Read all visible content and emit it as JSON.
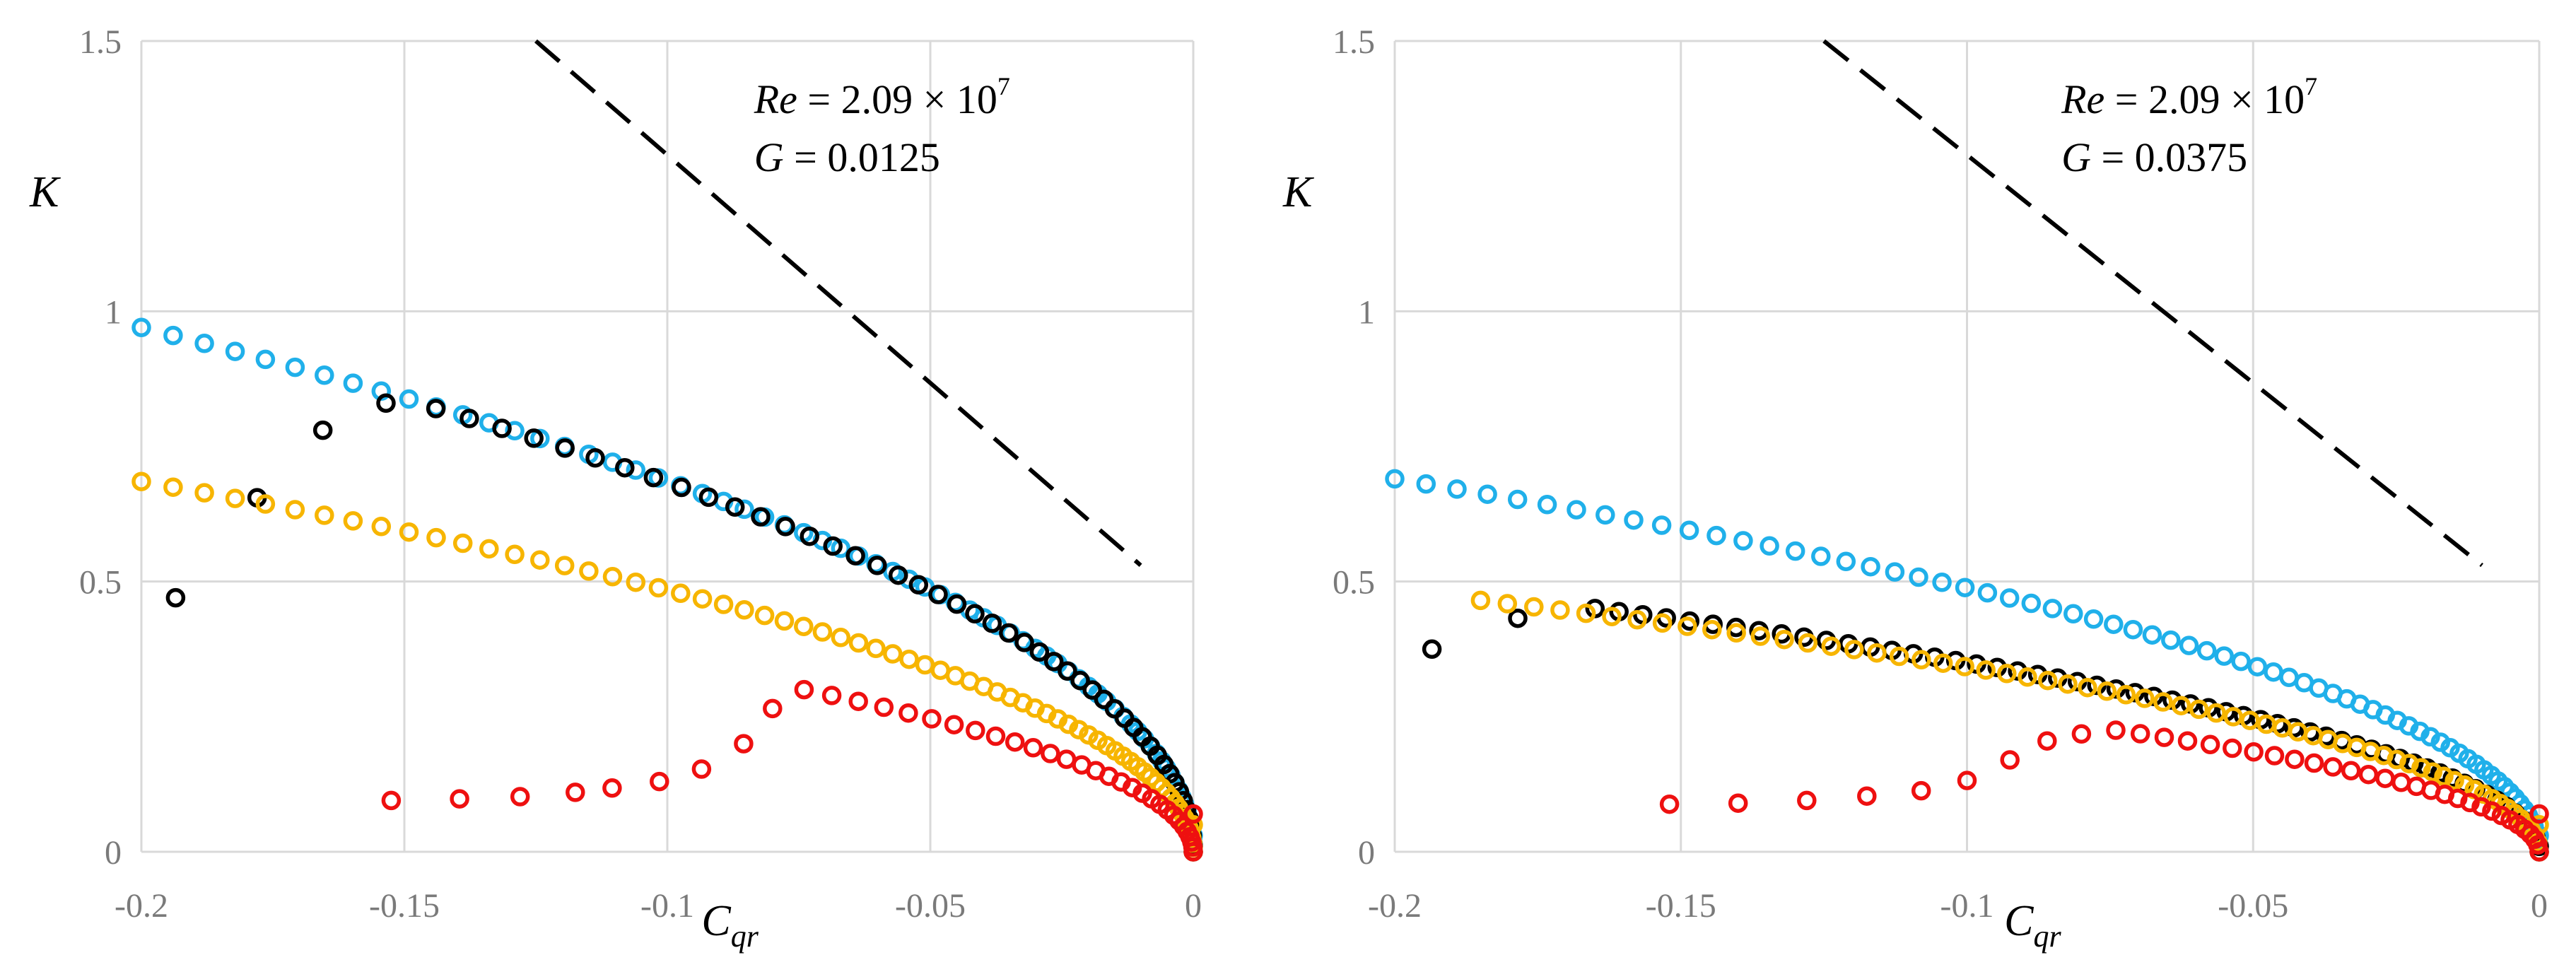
{
  "colors": {
    "grid": "#d9d9d9",
    "tick_text": "#7a7a7a",
    "blue": "#20b0ea",
    "black": "#000000",
    "orange": "#f7b500",
    "red": "#ee1010",
    "dash": "#000000"
  },
  "chart_data": [
    {
      "type": "scatter",
      "title": "",
      "xlabel_main": "C",
      "xlabel_sub": "qr",
      "ylabel": "K",
      "xlim": [
        -0.2,
        0
      ],
      "ylim": [
        0,
        1.5
      ],
      "xticks": [
        -0.2,
        -0.15,
        -0.1,
        -0.05,
        0
      ],
      "xtick_labels": [
        "-0.2",
        "-0.15",
        "-0.1",
        "-0.05",
        "0"
      ],
      "yticks": [
        0,
        0.5,
        1,
        1.5
      ],
      "ytick_labels": [
        "0",
        "0.5",
        "1",
        "1.5"
      ],
      "grid": true,
      "annotation": {
        "re_label": "Re",
        "re_value": " = 2.09 × 10",
        "re_exp": "7",
        "g_label": "G",
        "g_value": " = 0.0125"
      },
      "dashed_line": {
        "x": [
          -0.125,
          -0.01
        ],
        "y": [
          1.5,
          0.53
        ]
      },
      "series": [
        {
          "name": "blue",
          "color": "blue",
          "c0": 0.97,
          "x0": -0.2,
          "n": 70,
          "p": 2.1,
          "zero_y": 0.03
        },
        {
          "name": "black",
          "color": "black",
          "c0": 0.82,
          "x0": -0.144,
          "n": 48,
          "p": 2.1,
          "zero_y": 0.01,
          "extra": [
            {
              "x": -0.1935,
              "y": 0.47
            },
            {
              "x": -0.178,
              "y": 0.655
            },
            {
              "x": -0.1655,
              "y": 0.78
            },
            {
              "x": -0.1535,
              "y": 0.83
            }
          ]
        },
        {
          "name": "orange",
          "color": "orange",
          "c0": 0.685,
          "x0": -0.2,
          "n": 70,
          "p": 2.1,
          "zero_y": 0.05
        },
        {
          "name": "red",
          "color": "red",
          "c0": 0.3,
          "x0": -0.074,
          "n": 30,
          "p": 2.1,
          "zero_y": 0.07,
          "extra": [
            {
              "x": -0.1525,
              "y": 0.095
            },
            {
              "x": -0.1395,
              "y": 0.098
            },
            {
              "x": -0.128,
              "y": 0.102
            },
            {
              "x": -0.1175,
              "y": 0.11
            },
            {
              "x": -0.1105,
              "y": 0.118
            },
            {
              "x": -0.1015,
              "y": 0.13
            },
            {
              "x": -0.0935,
              "y": 0.153
            },
            {
              "x": -0.0855,
              "y": 0.2
            },
            {
              "x": -0.08,
              "y": 0.265
            }
          ]
        }
      ]
    },
    {
      "type": "scatter",
      "title": "",
      "xlabel_main": "C",
      "xlabel_sub": "qr",
      "ylabel": "K",
      "xlim": [
        -0.2,
        0
      ],
      "ylim": [
        0,
        1.5
      ],
      "xticks": [
        -0.2,
        -0.15,
        -0.1,
        -0.05,
        0
      ],
      "xtick_labels": [
        "-0.2",
        "-0.15",
        "-0.1",
        "-0.05",
        "0"
      ],
      "yticks": [
        0,
        0.5,
        1,
        1.5
      ],
      "ytick_labels": [
        "0",
        "0.5",
        "1",
        "1.5"
      ],
      "grid": true,
      "annotation": {
        "re_label": "Re",
        "re_value": " = 2.09 × 10",
        "re_exp": "7",
        "g_label": "G",
        "g_value": " = 0.0375"
      },
      "dashed_line": {
        "x": [
          -0.125,
          -0.01
        ],
        "y": [
          1.5,
          0.53
        ]
      },
      "series": [
        {
          "name": "blue",
          "color": "blue",
          "c0": 0.69,
          "x0": -0.2,
          "n": 70,
          "p": 1.9,
          "zero_y": 0.03
        },
        {
          "name": "black",
          "color": "black",
          "c0": 0.45,
          "x0": -0.165,
          "n": 56,
          "p": 1.4,
          "zero_y": 0.01,
          "extra": [
            {
              "x": -0.1935,
              "y": 0.375
            },
            {
              "x": -0.1785,
              "y": 0.432
            }
          ]
        },
        {
          "name": "orange",
          "color": "orange",
          "c0": 0.465,
          "x0": -0.185,
          "n": 64,
          "p": 1.6,
          "zero_y": 0.05
        },
        {
          "name": "red",
          "color": "red",
          "c0": 0.225,
          "x0": -0.074,
          "n": 30,
          "p": 1.7,
          "zero_y": 0.07,
          "extra": [
            {
              "x": -0.152,
              "y": 0.088
            },
            {
              "x": -0.14,
              "y": 0.09
            },
            {
              "x": -0.128,
              "y": 0.095
            },
            {
              "x": -0.1175,
              "y": 0.103
            },
            {
              "x": -0.108,
              "y": 0.113
            },
            {
              "x": -0.1,
              "y": 0.132
            },
            {
              "x": -0.0925,
              "y": 0.17
            },
            {
              "x": -0.086,
              "y": 0.205
            },
            {
              "x": -0.08,
              "y": 0.218
            }
          ]
        }
      ]
    }
  ]
}
